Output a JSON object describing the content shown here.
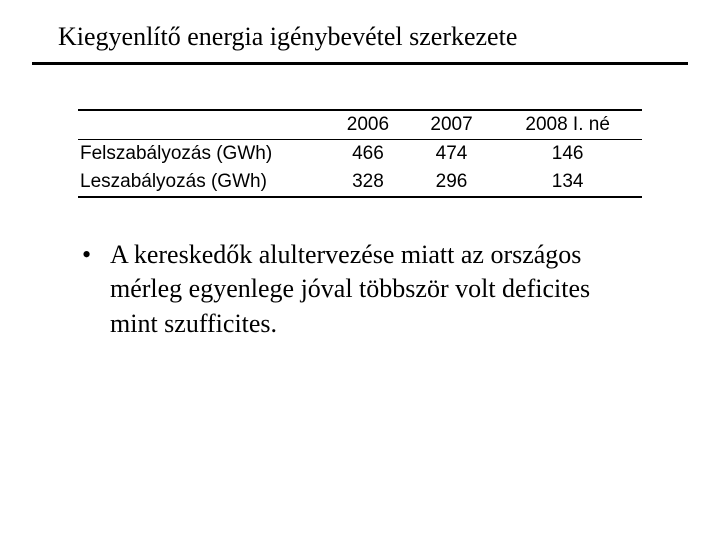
{
  "title": "Kiegyenlítő energia igénybevétel szerkezete",
  "table": {
    "columns": [
      "",
      "2006",
      "2007",
      "2008 I. né"
    ],
    "rows": [
      [
        "Felszabályozás (GWh)",
        "466",
        "474",
        "146"
      ],
      [
        "Leszabályozás (GWh)",
        "328",
        "296",
        "134"
      ]
    ]
  },
  "bullet": "A kereskedők alultervezése miatt az országos mérleg egyenlege jóval többször volt deficites mint szufficites."
}
